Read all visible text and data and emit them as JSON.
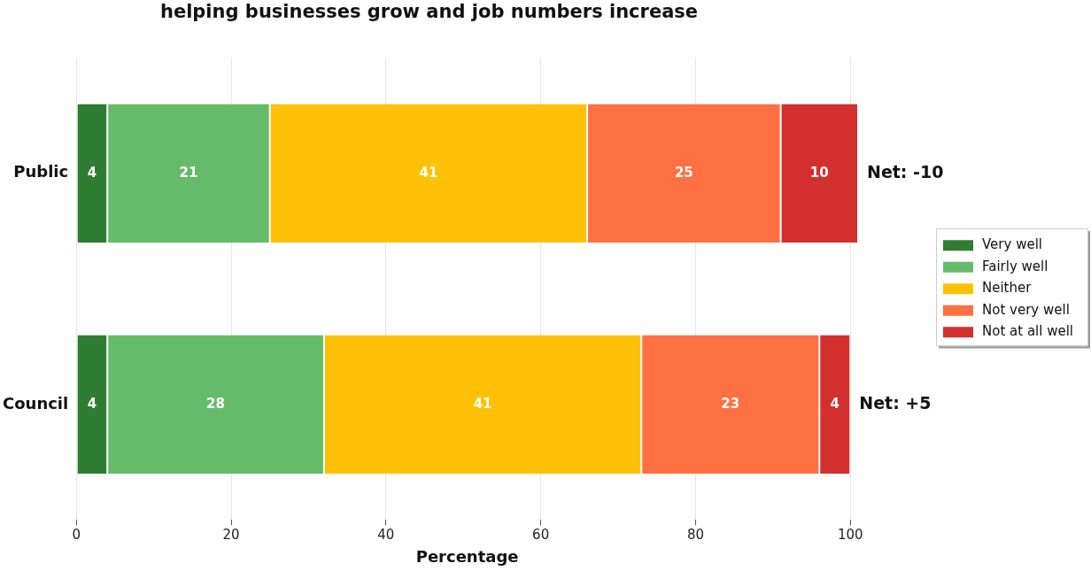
{
  "chart_data": {
    "type": "bar",
    "orientation": "horizontal",
    "stacked": true,
    "title": "helping businesses grow and job numbers increase",
    "xlabel": "Percentage",
    "categories": [
      "Public",
      "Council"
    ],
    "series": [
      {
        "name": "Very well",
        "color": "#2e7d32",
        "values": [
          4,
          4
        ]
      },
      {
        "name": "Fairly well",
        "color": "#66bb6a",
        "values": [
          21,
          28
        ]
      },
      {
        "name": "Neither",
        "color": "#ffc107",
        "values": [
          41,
          41
        ]
      },
      {
        "name": "Not very well",
        "color": "#ff7043",
        "values": [
          25,
          23
        ]
      },
      {
        "name": "Not at all well",
        "color": "#d32f2f",
        "values": [
          10,
          4
        ]
      }
    ],
    "xlim": [
      0,
      101
    ],
    "xticks": [
      0,
      20,
      40,
      60,
      80,
      100
    ],
    "grid": "x",
    "legend": "right",
    "data_labels": true,
    "annotations": [
      "Net: -10",
      "Net: +5"
    ]
  }
}
